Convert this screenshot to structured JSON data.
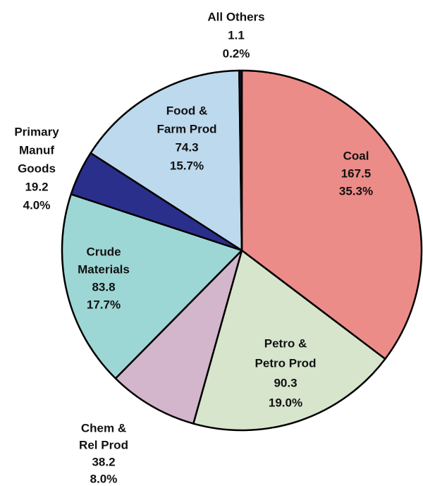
{
  "chart_data": {
    "type": "pie",
    "categories": [
      [
        "Coal"
      ],
      [
        "Petro &",
        "Petro Prod"
      ],
      [
        "Chem &",
        "Rel Prod"
      ],
      [
        "Crude",
        "Materials"
      ],
      [
        "Primary",
        "Manuf",
        "Goods"
      ],
      [
        "Food &",
        "Farm Prod"
      ],
      [
        "All Others"
      ]
    ],
    "values": [
      167.5,
      90.3,
      38.2,
      83.8,
      19.2,
      74.3,
      1.1
    ],
    "percents": [
      35.3,
      19.0,
      8.0,
      17.7,
      4.0,
      15.7,
      0.2
    ],
    "percent_labels": [
      "35.3%",
      "19.0%",
      "8.0%",
      "17.7%",
      "4.0%",
      "15.7%",
      "0.2%"
    ],
    "colors": [
      "#ec8c88",
      "#d7e5cd",
      "#d3b5cc",
      "#9dd7d5",
      "#2b2f8c",
      "#bdd9ed",
      "#1b1b3d"
    ]
  }
}
